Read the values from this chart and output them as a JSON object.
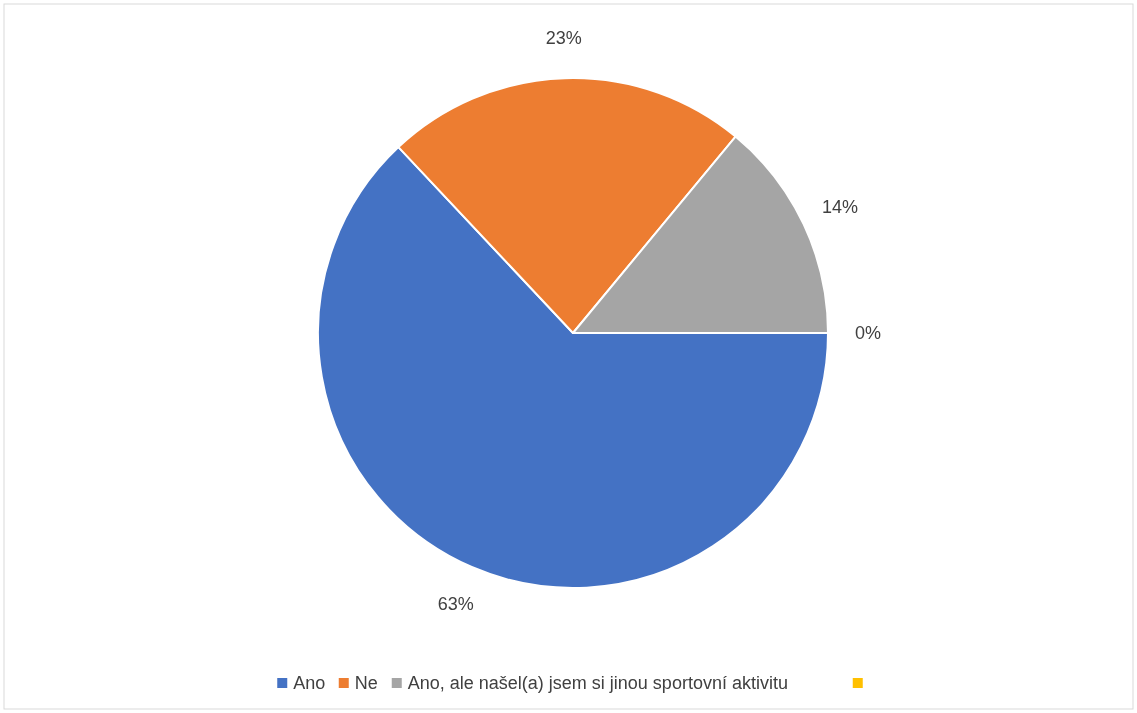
{
  "chart_data": {
    "type": "pie",
    "categories": [
      "Ano",
      "Ne",
      "Ano, ale našel(a) jsem si jinou sportovní aktivitu",
      null
    ],
    "values": [
      63,
      23,
      14,
      0
    ],
    "colors": [
      "#4472c4",
      "#ed7d31",
      "#a5a5a5",
      "#ffc000"
    ],
    "value_labels": [
      "63%",
      "23%",
      "14%",
      "0%"
    ],
    "legend": "bottom"
  }
}
